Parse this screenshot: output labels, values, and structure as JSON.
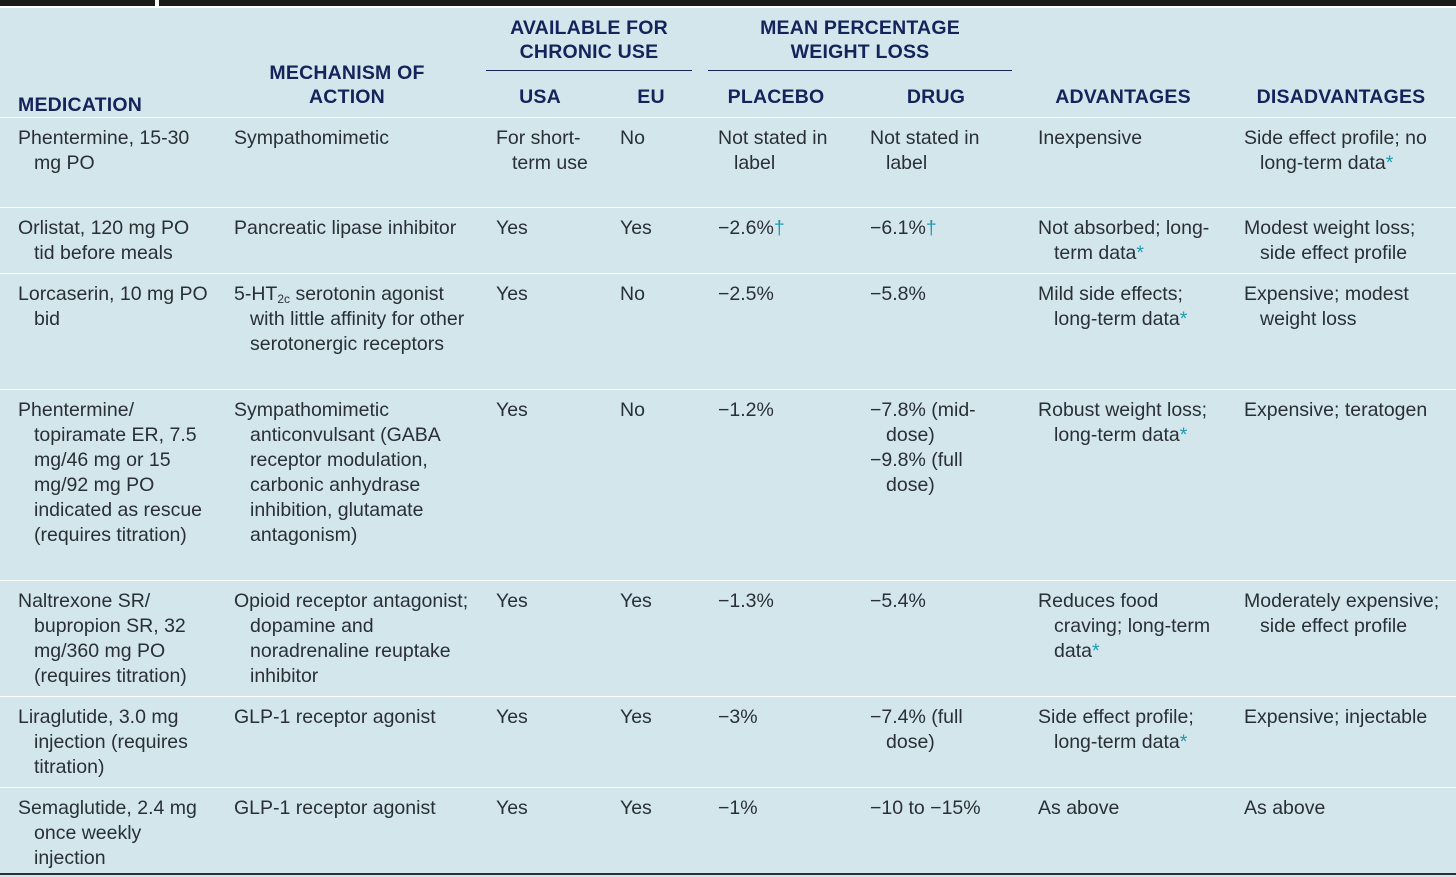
{
  "header": {
    "medication": "MEDICATION",
    "mechanism_line1": "MECHANISM OF",
    "mechanism_line2": "ACTION",
    "group_chronic_line1": "AVAILABLE FOR",
    "group_chronic_line2": "CHRONIC USE",
    "group_weight_line1": "MEAN PERCENTAGE",
    "group_weight_line2": "WEIGHT LOSS",
    "usa": "USA",
    "eu": "EU",
    "placebo": "PLACEBO",
    "drug": "DRUG",
    "advantages": "ADVANTAGES",
    "disadvantages": "DISADVANTAGES"
  },
  "rows": [
    {
      "medication": "Phentermine, 15-30 mg PO",
      "mechanism_a": "Sympathomimetic",
      "usa": "For short-term use",
      "eu": "No",
      "placebo": "Not stated in label",
      "placebo_mark": "",
      "drug": "Not stated in label",
      "drug_mark": "",
      "advantages": "Inexpensive",
      "advantages_mark": "",
      "disadvantages": "Side effect profile; no long-term data",
      "disadvantages_mark": "*"
    },
    {
      "medication": "Orlistat, 120 mg PO tid before meals",
      "mechanism_a": "Pancreatic lipase inhibitor",
      "usa": "Yes",
      "eu": "Yes",
      "placebo": "−2.6%",
      "placebo_mark": "†",
      "drug": "−6.1%",
      "drug_mark": "†",
      "advantages": "Not absorbed; long-term data",
      "advantages_mark": "*",
      "disadvantages": "Modest weight loss; side effect profile",
      "disadvantages_mark": ""
    },
    {
      "medication": "Lorcaserin, 10 mg PO bid",
      "mechanism_a": "5-HT",
      "mechanism_sub": "2c",
      "mechanism_b": " serotonin agonist with little affinity for other serotonergic receptors",
      "usa": "Yes",
      "eu": "No",
      "placebo": "−2.5%",
      "placebo_mark": "",
      "drug": "−5.8%",
      "drug_mark": "",
      "advantages": "Mild side effects; long-term data",
      "advantages_mark": "*",
      "disadvantages": "Expensive; modest weight loss",
      "disadvantages_mark": ""
    },
    {
      "medication": "Phentermine/ topiramate ER, 7.5 mg/46 mg or 15 mg/92 mg PO indicated as rescue (requires titration)",
      "mechanism_a": "Sympathomimetic anticonvulsant (GABA receptor modulation, carbonic anhydrase inhibition, glutamate antagonism)",
      "usa": "Yes",
      "eu": "No",
      "placebo": "−1.2%",
      "placebo_mark": "",
      "drug": "−7.8% (mid-dose)",
      "drug_2": "−9.8% (full dose)",
      "drug_mark": "",
      "advantages": "Robust weight loss; long-term data",
      "advantages_mark": "*",
      "disadvantages": "Expensive; teratogen",
      "disadvantages_mark": ""
    },
    {
      "medication": "Naltrexone SR/ bupropion SR, 32 mg/360 mg PO (requires titration)",
      "mechanism_a": "Opioid receptor antagonist; dopamine and noradrenaline reuptake inhibitor",
      "usa": "Yes",
      "eu": "Yes",
      "placebo": "−1.3%",
      "placebo_mark": "",
      "drug": "−5.4%",
      "drug_mark": "",
      "advantages": "Reduces food craving; long-term data",
      "advantages_mark": "*",
      "disadvantages": "Moderately expensive; side effect profile",
      "disadvantages_mark": ""
    },
    {
      "medication": "Liraglutide, 3.0 mg injection (requires titration)",
      "mechanism_a": "GLP-1 receptor agonist",
      "usa": "Yes",
      "eu": "Yes",
      "placebo": "−3%",
      "placebo_mark": "",
      "drug": "−7.4% (full dose)",
      "drug_mark": "",
      "advantages": "Side effect profile; long-term data",
      "advantages_mark": "*",
      "disadvantages": "Expensive; injectable",
      "disadvantages_mark": ""
    },
    {
      "medication": "Semaglutide, 2.4 mg once weekly injection",
      "mechanism_a": "GLP-1 receptor agonist",
      "usa": "Yes",
      "eu": "Yes",
      "placebo": "−1%",
      "placebo_mark": "",
      "drug": "−10 to −15%",
      "drug_mark": "",
      "advantages": "As above",
      "advantages_mark": "",
      "disadvantages": "As above",
      "disadvantages_mark": ""
    }
  ]
}
